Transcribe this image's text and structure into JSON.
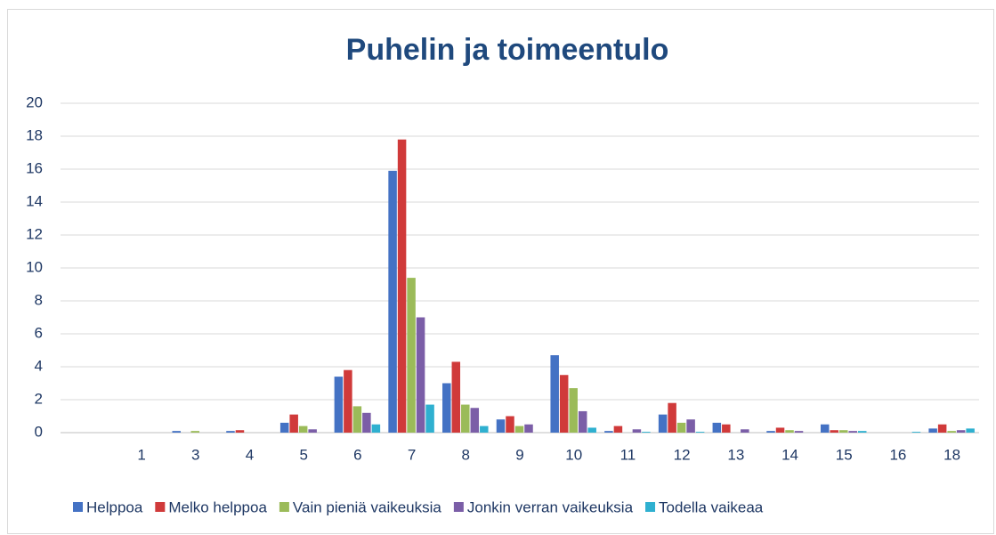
{
  "chart_data": {
    "type": "bar",
    "title": "Puhelin ja toimeentulo",
    "categories": [
      null,
      "1",
      "3",
      "4",
      "5",
      "6",
      "7",
      "8",
      "9",
      "10",
      "11",
      "12",
      "13",
      "14",
      "15",
      "16",
      "18"
    ],
    "series": [
      {
        "name": "Helppoa",
        "color": "#4472c4",
        "values": [
          0,
          0,
          0.1,
          0.1,
          0.6,
          3.4,
          15.9,
          3.0,
          0.8,
          4.7,
          0.1,
          1.1,
          0.6,
          0.1,
          0.5,
          0,
          0.25
        ]
      },
      {
        "name": "Melko helppoa",
        "color": "#d03a3a",
        "values": [
          0,
          0,
          0,
          0.15,
          1.1,
          3.8,
          17.8,
          4.3,
          1.0,
          3.5,
          0.4,
          1.8,
          0.5,
          0.3,
          0.15,
          0,
          0.5
        ]
      },
      {
        "name": "Vain pieniä vaikeuksia",
        "color": "#9bbb59",
        "values": [
          0,
          0,
          0.1,
          0,
          0.4,
          1.6,
          9.4,
          1.7,
          0.4,
          2.7,
          0,
          0.6,
          0,
          0.15,
          0.15,
          0,
          0.1
        ]
      },
      {
        "name": "Jonkin verran vaikeuksia",
        "color": "#7b5ea7",
        "values": [
          0,
          0,
          0,
          0,
          0.2,
          1.2,
          7.0,
          1.5,
          0.5,
          1.3,
          0.2,
          0.8,
          0.2,
          0.1,
          0.1,
          0,
          0.15
        ]
      },
      {
        "name": "Todella vaikeaa",
        "color": "#2fb0d0",
        "values": [
          0,
          0,
          0,
          0,
          0,
          0.5,
          1.7,
          0.4,
          0,
          0.3,
          0.05,
          0.05,
          0,
          0,
          0.1,
          0.05,
          0.25
        ]
      }
    ],
    "ylim": [
      0,
      20
    ],
    "yticks": [
      0,
      2,
      4,
      6,
      8,
      10,
      12,
      14,
      16,
      18,
      20
    ],
    "grid": true,
    "legend": "bottom"
  }
}
